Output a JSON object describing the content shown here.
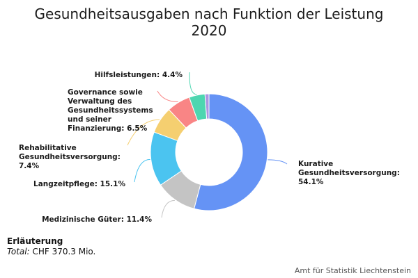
{
  "chart_data": {
    "type": "pie",
    "variant": "donut",
    "title": "Gesundheitsausgaben nach Funktion der Leistung",
    "subtitle": "2020",
    "unit": "%",
    "slices": [
      {
        "label": "Kurative Gesundheitsversorgung",
        "value": 54.1,
        "color": "#6593f5"
      },
      {
        "label": "Medizinische Güter",
        "value": 11.4,
        "color": "#c4c4c4"
      },
      {
        "label": "Langzeitpflege",
        "value": 15.1,
        "color": "#4bc4f0"
      },
      {
        "label": "Rehabilitative Gesundheitsversorgung",
        "value": 7.4,
        "color": "#f5cf70"
      },
      {
        "label": "Governance sowie Verwaltung des Gesundheitssystems und seiner Finanzierung",
        "value": 6.5,
        "color": "#f98585"
      },
      {
        "label": "Hilfsleistungen",
        "value": 4.4,
        "color": "#4dd6b0"
      },
      {
        "label": "",
        "value": 1.1,
        "color": "#a995e2"
      }
    ],
    "data_labels": [
      {
        "lines": [
          "Kurative",
          "Gesundheitsversorgung:",
          "54.1%"
        ]
      },
      {
        "lines": [
          "Medizinische Güter: 11.4%"
        ]
      },
      {
        "lines": [
          "Langzeitpflege: 15.1%"
        ]
      },
      {
        "lines": [
          "Rehabilitative",
          "Gesundheitsversorgung:",
          "7.4%"
        ]
      },
      {
        "lines": [
          "Governance sowie",
          "Verwaltung des",
          "Gesundheitssystems",
          "und seiner",
          "Finanzierung: 6.5%"
        ]
      },
      {
        "lines": [
          "Hilfsleistungen: 4.4%"
        ]
      }
    ]
  },
  "note": {
    "heading": "Erläuterung",
    "total_label": "Total:",
    "total_value": "CHF 370.3 Mio."
  },
  "source": "Amt für Statistik Liechtenstein"
}
